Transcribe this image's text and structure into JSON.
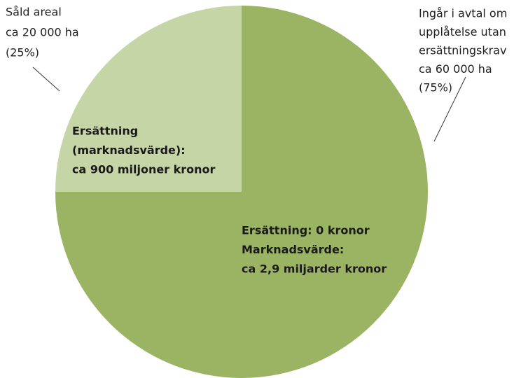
{
  "chart_data": {
    "type": "pie",
    "categories": [
      [
        "Såld areal",
        "ca 20 000 ha"
      ],
      [
        "Ingår i avtal om",
        "upplåtelse utan",
        "ersättningskrav",
        "ca 60 000 ha"
      ]
    ],
    "values": [
      25,
      75
    ],
    "value_labels": [
      "(25%)",
      "(75%)"
    ],
    "colors": [
      "#c5d5a6",
      "#9bb463"
    ],
    "annotations": [
      [
        "Ersättning",
        "(marknadsvärde):",
        "ca 900 miljoner kronor"
      ],
      [
        "Ersättning: 0 kronor",
        "Marknadsvärde:",
        "ca 2,9 miljarder kronor"
      ]
    ]
  }
}
